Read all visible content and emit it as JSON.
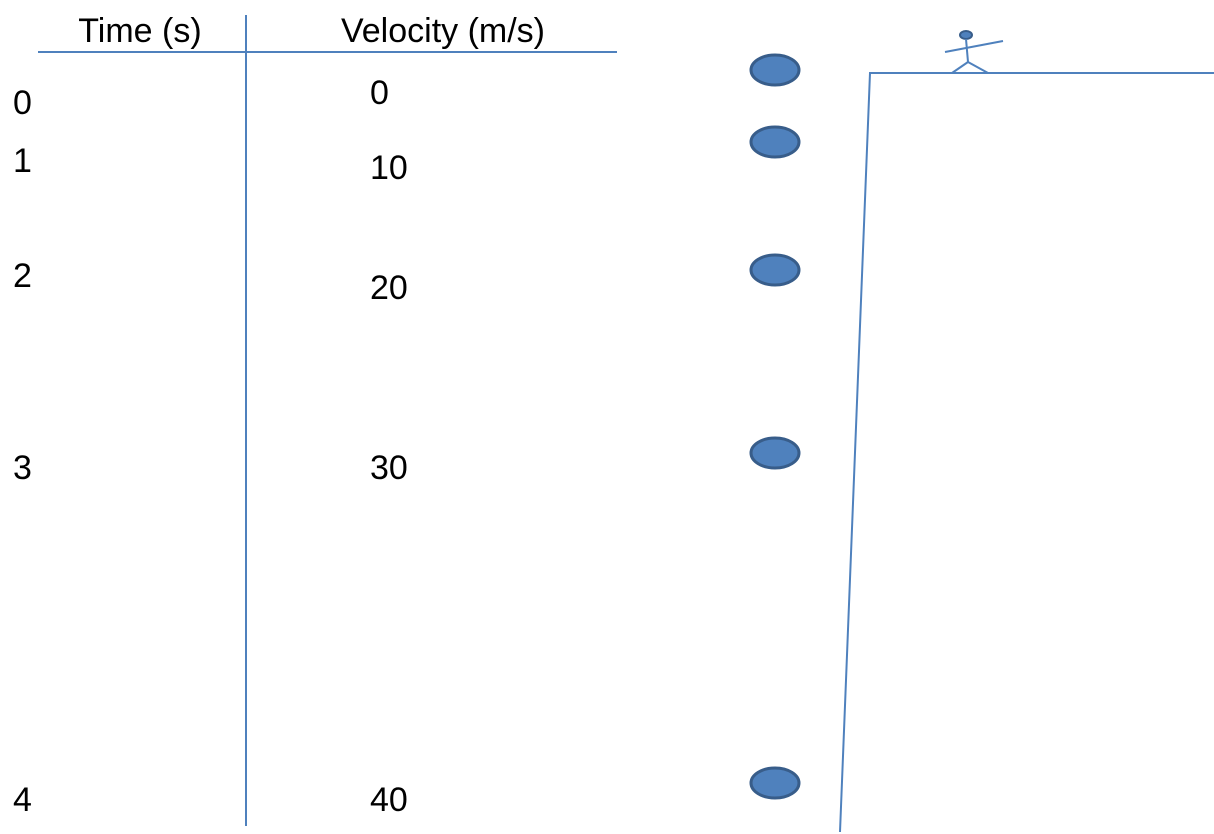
{
  "table": {
    "headers": [
      "Time (s)",
      "Velocity (m/s)"
    ],
    "rows": [
      [
        0,
        0
      ],
      [
        1,
        10
      ],
      [
        2,
        20
      ],
      [
        3,
        30
      ],
      [
        4,
        40
      ]
    ]
  }
}
